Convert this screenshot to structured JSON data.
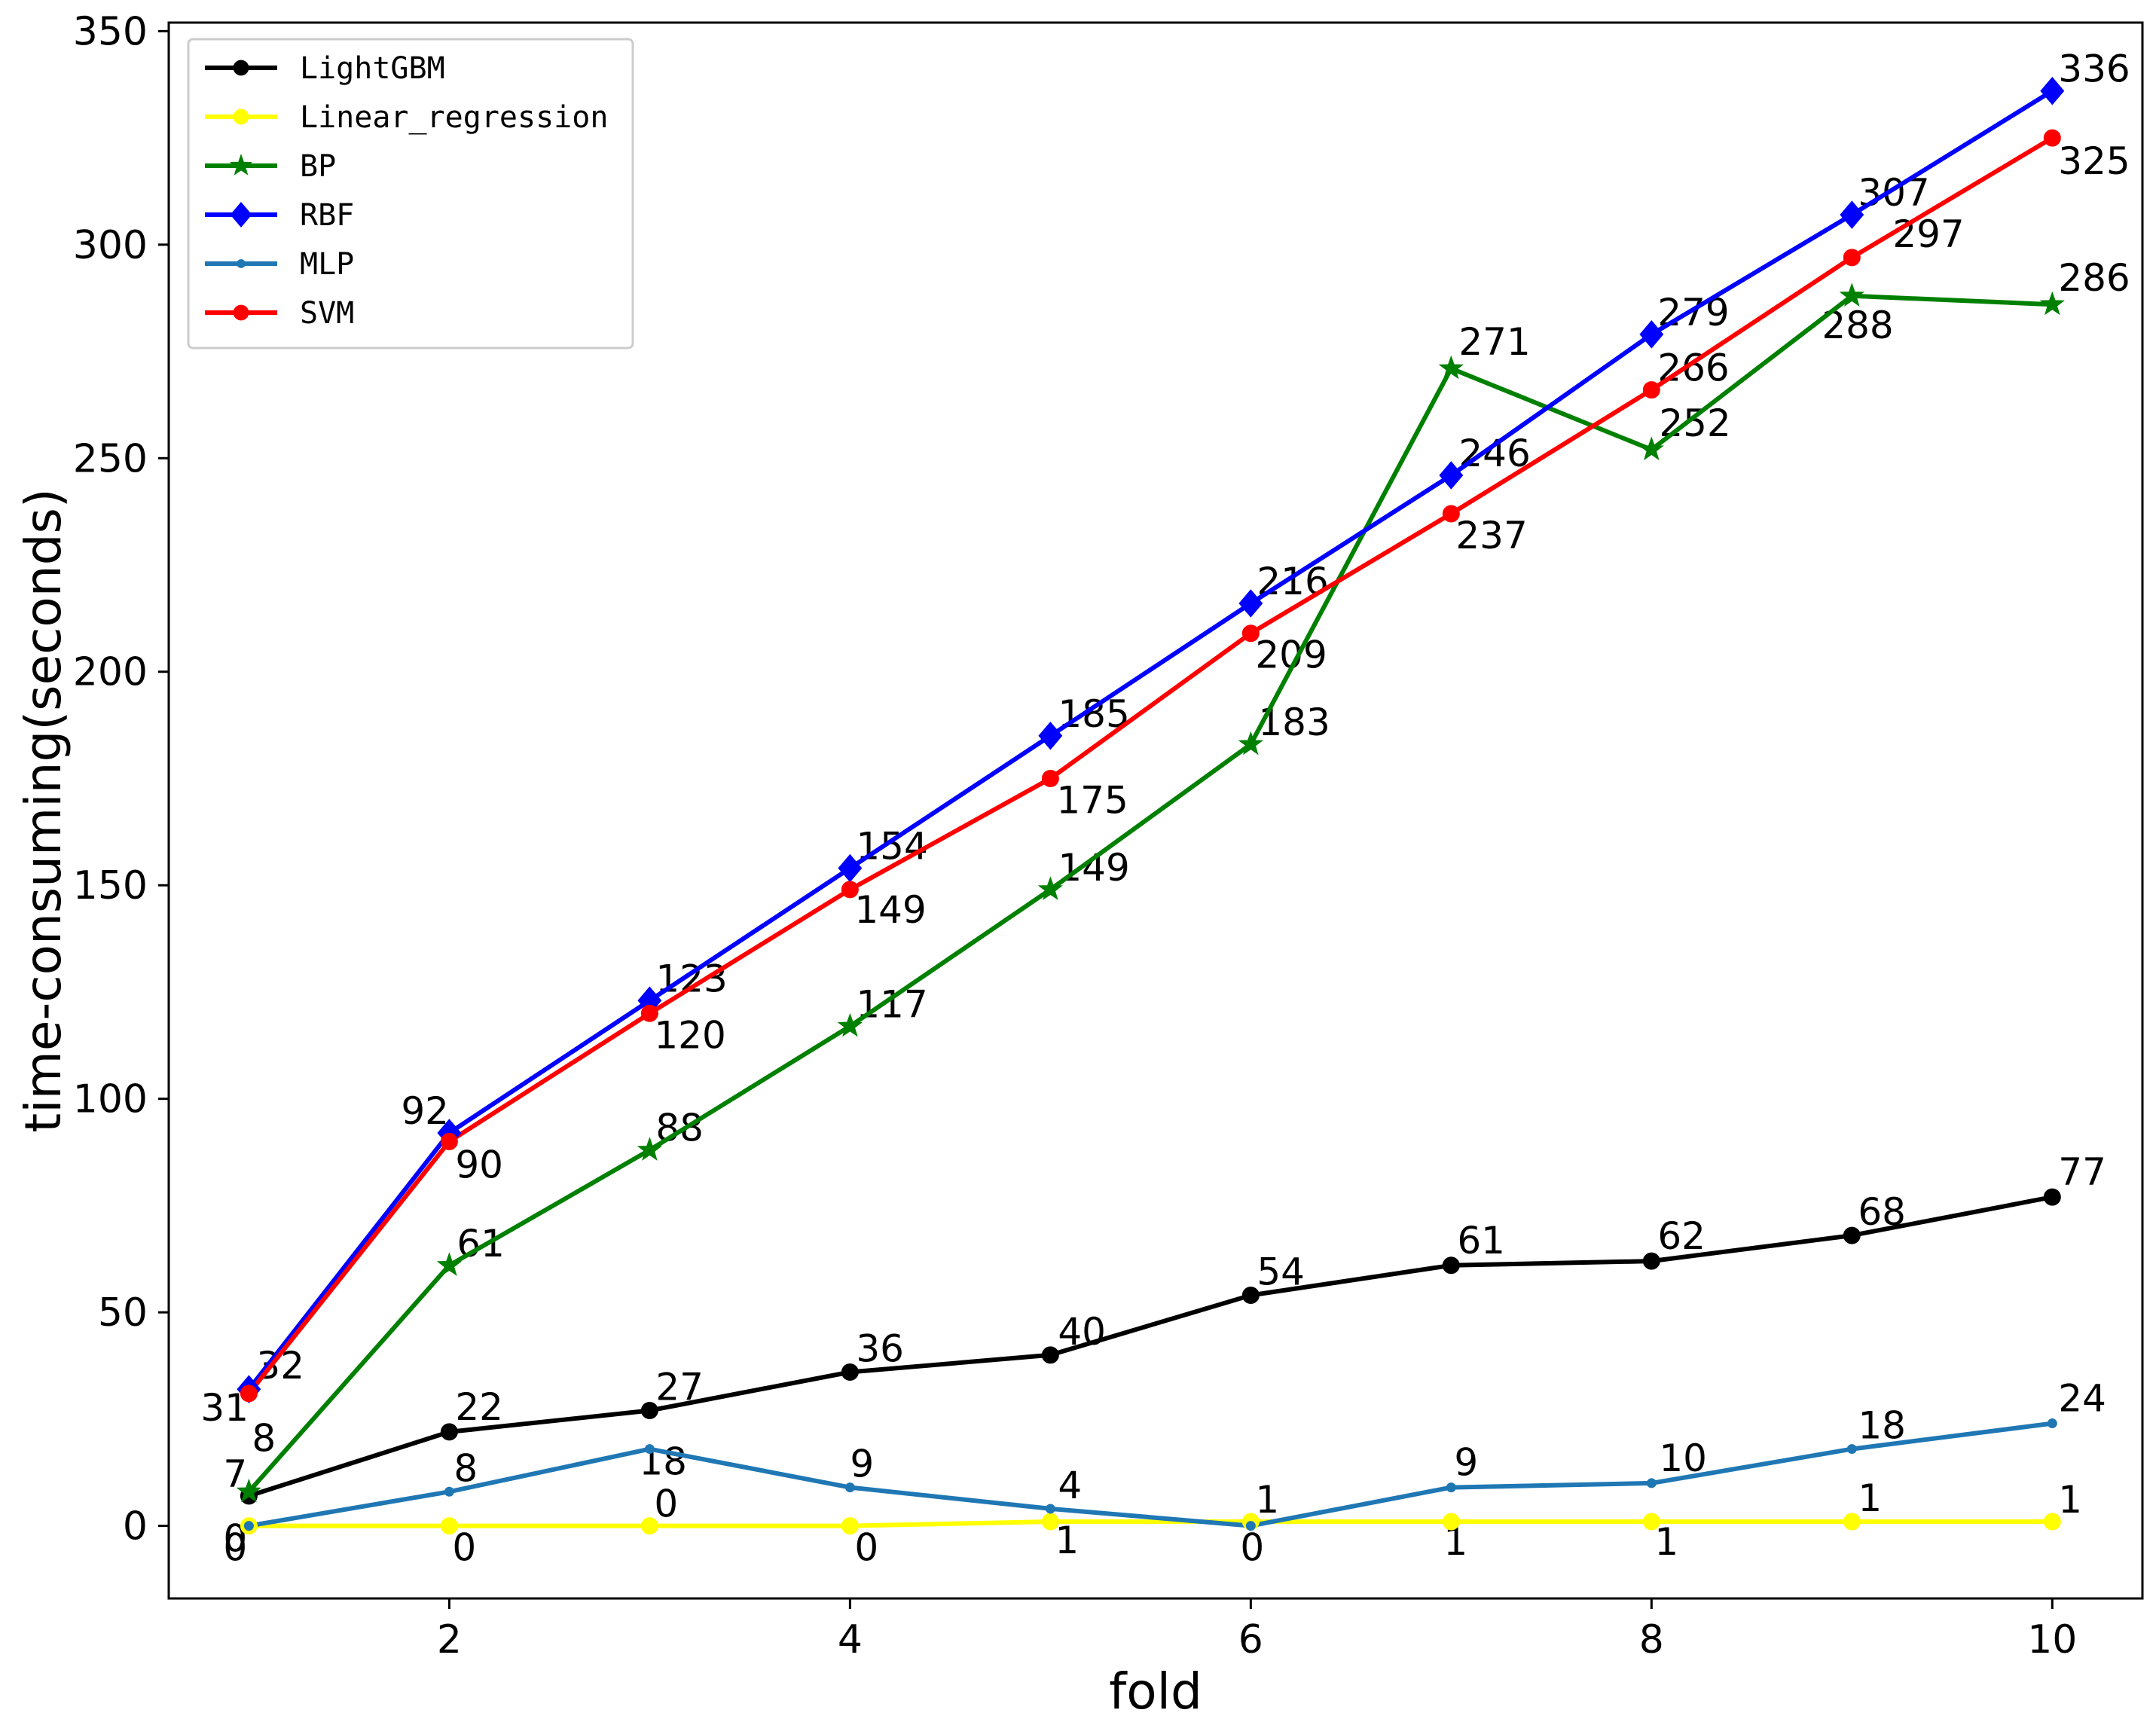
{
  "chart_data": {
    "type": "line",
    "title": "",
    "xlabel": "fold",
    "ylabel": "time-consuming(seconds)",
    "x": [
      1,
      2,
      3,
      4,
      5,
      6,
      7,
      8,
      9,
      10
    ],
    "xlim": [
      0.6,
      10.45
    ],
    "ylim": [
      -17,
      352
    ],
    "xticks": [
      2,
      4,
      6,
      8,
      10
    ],
    "yticks": [
      0,
      50,
      100,
      150,
      200,
      250,
      300,
      350
    ],
    "grid": false,
    "legend_position": "top-left",
    "series": [
      {
        "name": "LightGBM",
        "color": "#000000",
        "marker": "circle",
        "values": [
          7,
          22,
          27,
          36,
          40,
          54,
          61,
          62,
          68,
          77
        ],
        "labels": [
          "7",
          "22",
          "27",
          "36",
          "40",
          "54",
          "61",
          "62",
          "68",
          "77"
        ]
      },
      {
        "name": "Linear_regression",
        "color": "#ffff00",
        "marker": "circle",
        "values": [
          0,
          0,
          0,
          0,
          1,
          1,
          1,
          1,
          1,
          1
        ],
        "labels": [
          "0",
          "0",
          "0",
          "0",
          "1",
          "1",
          "1",
          "1",
          "1",
          "1"
        ]
      },
      {
        "name": "BP",
        "color": "#008000",
        "marker": "star",
        "values": [
          8,
          61,
          88,
          117,
          149,
          183,
          271,
          252,
          288,
          286
        ],
        "labels": [
          "8",
          "61",
          "88",
          "117",
          "149",
          "183",
          "271",
          "252",
          "288",
          "286"
        ]
      },
      {
        "name": "RBF",
        "color": "#0000ff",
        "marker": "diamond",
        "values": [
          32,
          92,
          123,
          154,
          185,
          216,
          246,
          279,
          307,
          336
        ],
        "labels": [
          "32",
          "92",
          "123",
          "154",
          "185",
          "216",
          "246",
          "279",
          "307",
          "336"
        ]
      },
      {
        "name": "MLP",
        "color": "#1f77b4",
        "marker": "dot",
        "values": [
          0,
          8,
          18,
          9,
          4,
          0,
          9,
          10,
          18,
          24
        ],
        "labels": [
          "0",
          "8",
          "18",
          "9",
          "4",
          "0",
          "9",
          "10",
          "18",
          "24"
        ]
      },
      {
        "name": "SVM",
        "color": "#ff0000",
        "marker": "circle",
        "values": [
          31,
          90,
          120,
          149,
          175,
          209,
          237,
          266,
          297,
          325
        ],
        "labels": [
          "31",
          "90",
          "120",
          "149",
          "175",
          "209",
          "237",
          "266",
          "297",
          "325"
        ]
      }
    ]
  }
}
